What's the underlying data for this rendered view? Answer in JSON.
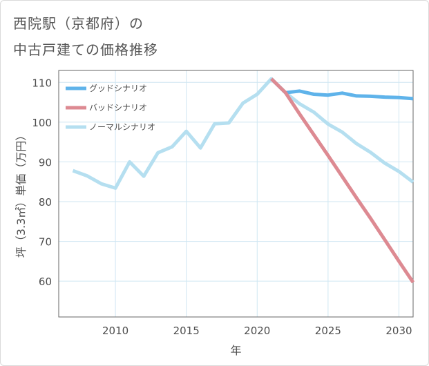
{
  "title": {
    "line1": "西院駅（京都府）の",
    "line2": "中古戸建ての価格推移"
  },
  "chart_data": {
    "type": "line",
    "title": "西院駅（京都府）の中古戸建ての価格推移",
    "xlabel": "年",
    "ylabel": "坪（3.3㎡）単価（万円）",
    "xlim": [
      2006,
      2031
    ],
    "ylim": [
      51,
      113
    ],
    "x_ticks": [
      2010,
      2015,
      2020,
      2025,
      2030
    ],
    "y_ticks": [
      60,
      70,
      80,
      90,
      100,
      110
    ],
    "legend_position": "top-left",
    "grid": true,
    "series": [
      {
        "name": "グッドシナリオ",
        "color": "#5fb3ea",
        "x": [
          2021,
          2022,
          2023,
          2024,
          2025,
          2026,
          2027,
          2028,
          2029,
          2030,
          2031
        ],
        "y": [
          110.9,
          107.4,
          107.8,
          107.0,
          106.8,
          107.3,
          106.6,
          106.5,
          106.3,
          106.2,
          105.9
        ]
      },
      {
        "name": "バッドシナリオ",
        "color": "#dd8a92",
        "x": [
          2021,
          2022,
          2023,
          2024,
          2025,
          2026,
          2027,
          2028,
          2029,
          2030,
          2031
        ],
        "y": [
          110.9,
          107.4,
          102.0,
          96.8,
          91.6,
          86.3,
          81.0,
          75.8,
          70.4,
          65.0,
          59.7
        ]
      },
      {
        "name": "ノーマルシナリオ",
        "color": "#b5dff0",
        "x": [
          2007,
          2008,
          2009,
          2010,
          2011,
          2012,
          2013,
          2014,
          2015,
          2016,
          2017,
          2018,
          2019,
          2020,
          2021,
          2022,
          2023,
          2024,
          2025,
          2026,
          2027,
          2028,
          2029,
          2030,
          2031
        ],
        "y": [
          87.8,
          86.5,
          84.5,
          83.4,
          90.0,
          86.4,
          92.3,
          93.8,
          97.7,
          93.5,
          99.6,
          99.8,
          104.8,
          107.0,
          110.9,
          107.4,
          104.6,
          102.5,
          99.5,
          97.5,
          94.6,
          92.4,
          89.7,
          87.6,
          84.9
        ]
      }
    ]
  }
}
